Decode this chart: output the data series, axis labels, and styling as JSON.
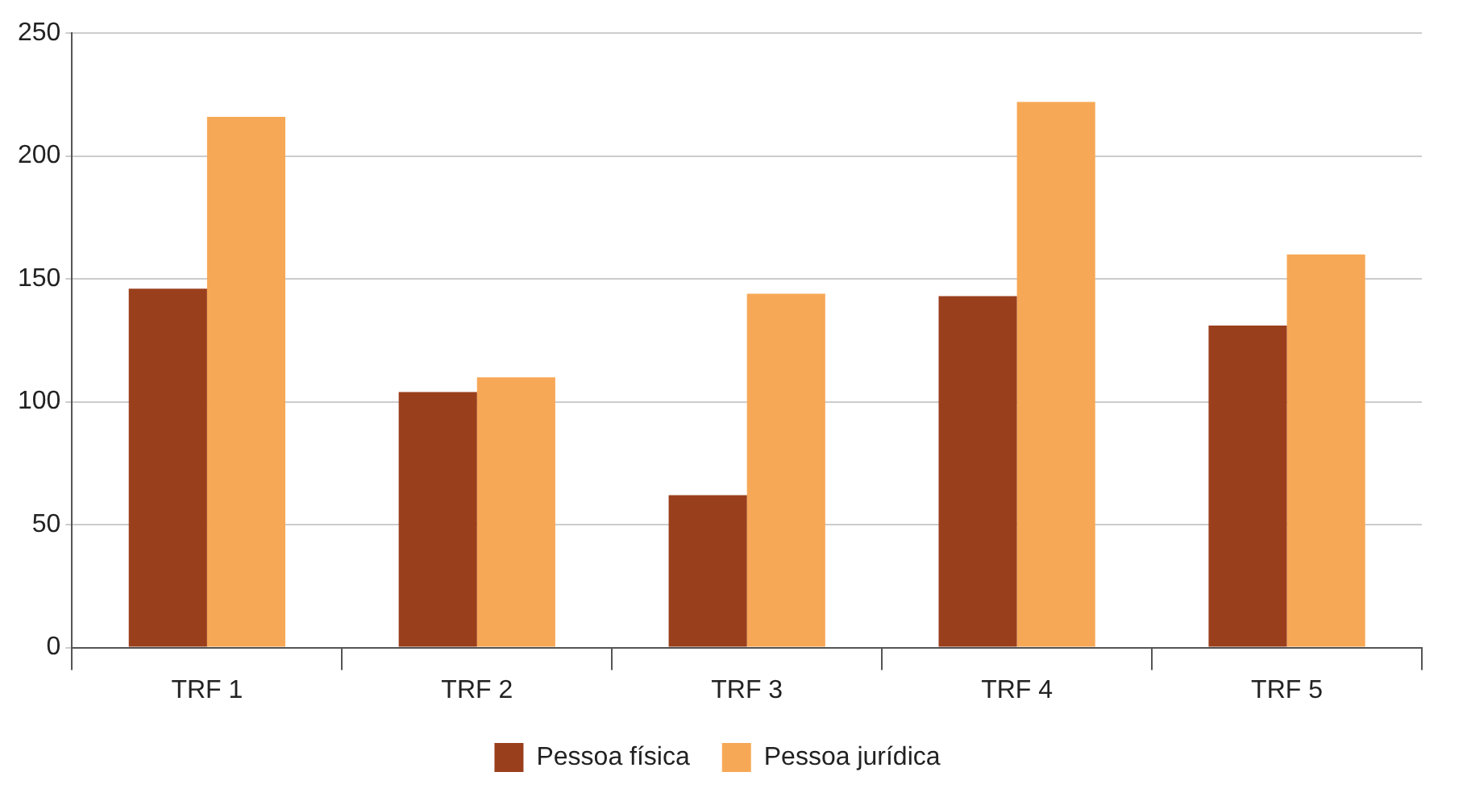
{
  "chart_data": {
    "type": "bar",
    "categories": [
      "TRF 1",
      "TRF 2",
      "TRF 3",
      "TRF 4",
      "TRF 5"
    ],
    "series": [
      {
        "name": "Pessoa física",
        "color": "#9a3f1c",
        "values": [
          146,
          104,
          62,
          143,
          131
        ]
      },
      {
        "name": "Pessoa jurídica",
        "color": "#f7a856",
        "values": [
          216,
          110,
          144,
          222,
          160
        ]
      }
    ],
    "ylim": [
      0,
      250
    ],
    "yticks": [
      0,
      50,
      100,
      150,
      200,
      250
    ],
    "grid": "y",
    "legend": "bottom"
  }
}
